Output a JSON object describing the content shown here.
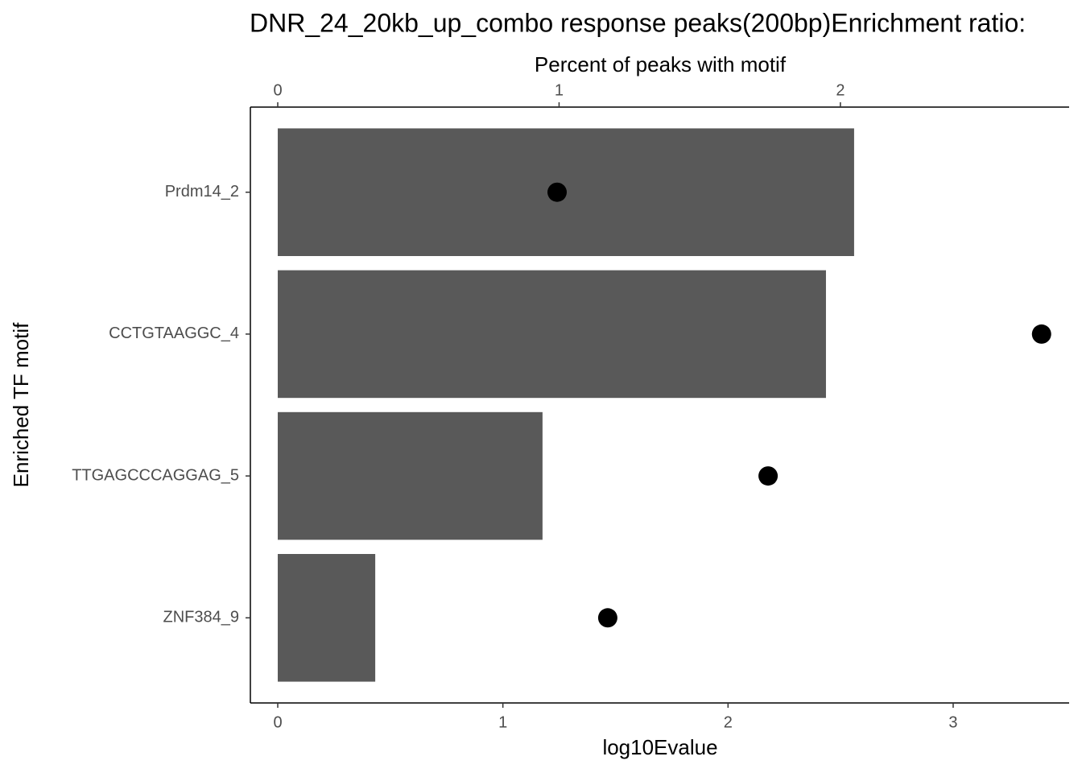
{
  "chart_data": {
    "type": "bar",
    "orientation": "horizontal",
    "title": "DNR_24_20kb_up_combo response peaks(200bp)Enrichment ratio:",
    "xlabel": "log10Evalue",
    "x2label": "Percent of peaks with motif",
    "ylabel": "Enriched TF motif",
    "categories": [
      "Prdm14_2",
      "CCTGTAAGGC_4",
      "TTGAGCCCAGGAG_5",
      "ZNF384_9"
    ],
    "series": [
      {
        "color": "#595959",
        "values": [
          2.56,
          2.435,
          1.176,
          0.433
        ]
      },
      {
        "color": "#000000",
        "type": "scatter",
        "axis": "x2",
        "values": [
          0.993,
          2.715,
          1.743,
          1.173
        ]
      }
    ],
    "xlim": [
      -0.1216,
      3.515
    ],
    "xticks": [
      0,
      1,
      2,
      3
    ],
    "x2lim": [
      -0.0973,
      2.813
    ],
    "x2ticks": [
      0,
      1,
      2
    ]
  }
}
